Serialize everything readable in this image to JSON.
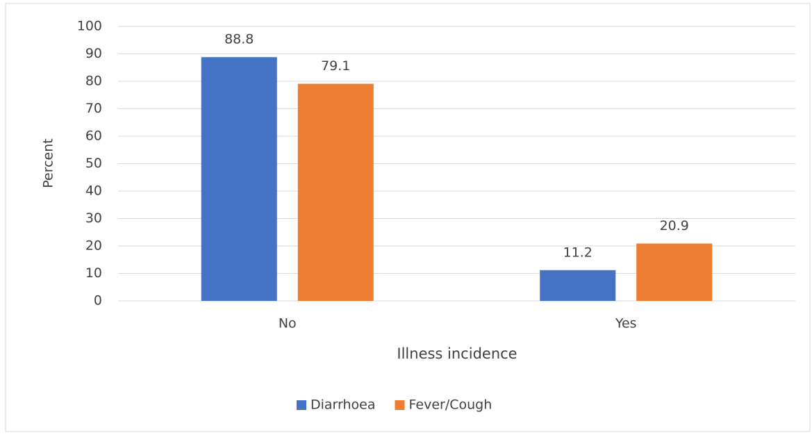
{
  "chart_data": {
    "type": "bar",
    "x_label": "Illness incidence",
    "y_label": "Percent",
    "categories": [
      "No",
      "Yes"
    ],
    "series": [
      {
        "name": "Diarrhoea",
        "color": "#4472c4",
        "values": [
          88.8,
          11.2
        ]
      },
      {
        "name": "Fever/Cough",
        "color": "#ed7d31",
        "values": [
          79.1,
          20.9
        ]
      }
    ],
    "ylim": [
      0,
      100
    ],
    "yticks": [
      0,
      10,
      20,
      30,
      40,
      50,
      60,
      70,
      80,
      90,
      100
    ],
    "grid": true,
    "legend": "bottom",
    "data_labels": true
  }
}
